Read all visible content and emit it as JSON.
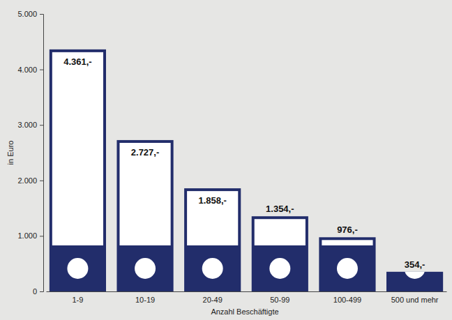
{
  "chart_data": {
    "type": "bar",
    "y_label": "in Euro",
    "x_label": "Anzahl Beschäftigte",
    "categories": [
      "1-9",
      "10-19",
      "20-49",
      "50-99",
      "100-499",
      "500 und mehr"
    ],
    "values": [
      4361,
      2727,
      1858,
      1354,
      976,
      354
    ],
    "value_labels": [
      "4.361,-",
      "2.727,-",
      "1.858,-",
      "1.354,-",
      "976,-",
      "354,-"
    ],
    "color": "#222d6b",
    "ylim": [
      0,
      5000
    ],
    "yticks": [
      0,
      {
        "value": 1000,
        "label": "1.000"
      },
      {
        "value": 2000,
        "label": "2.000"
      },
      {
        "value": 3000,
        "label": "3.000"
      },
      {
        "value": 4000,
        "label": "4.000"
      },
      {
        "value": 5000,
        "label": "5.000"
      }
    ],
    "grid": false,
    "data_labels": true
  }
}
